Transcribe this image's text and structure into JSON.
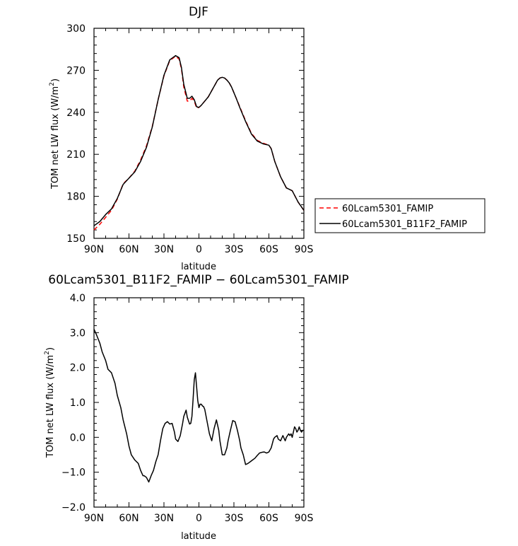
{
  "chart_data": [
    {
      "type": "line",
      "title": "DJF",
      "xlabel": "latitude",
      "ylabel": "TOM net LW flux (W/m",
      "ylabel_sup": "2",
      "ylabel_close": ")",
      "xlim": [
        90,
        -90
      ],
      "ylim": [
        150,
        300
      ],
      "xticks": [
        90,
        60,
        30,
        0,
        -30,
        -60,
        -90
      ],
      "xtick_labels": [
        "90N",
        "60N",
        "30N",
        "0",
        "30S",
        "60S",
        "90S"
      ],
      "yticks": [
        150,
        180,
        210,
        240,
        270,
        300
      ],
      "ytick_labels": [
        "150",
        "180",
        "210",
        "240",
        "270",
        "300"
      ],
      "legend_position": "right",
      "series": [
        {
          "name": "60Lcam5301_FAMIP",
          "color": "#ff0000",
          "style": "dashed",
          "x": [
            90,
            85,
            80,
            75,
            70,
            65,
            60,
            55,
            50,
            45,
            40,
            35,
            30,
            25,
            20,
            17,
            15,
            13,
            10,
            8,
            6,
            4,
            2,
            0,
            -2,
            -4,
            -6,
            -8,
            -10,
            -12,
            -14,
            -16,
            -18,
            -20,
            -22,
            -24,
            -26,
            -28,
            -30,
            -32,
            -35,
            -40,
            -45,
            -50,
            -55,
            -60,
            -62,
            -65,
            -70,
            -75,
            -80,
            -85,
            -90
          ],
          "y": [
            156,
            160,
            165,
            170,
            178,
            189,
            193,
            198,
            206,
            216,
            230,
            249,
            266,
            277,
            280,
            278,
            271,
            258,
            248,
            248,
            250,
            248,
            243,
            243.5,
            245,
            247,
            249,
            251,
            254,
            257,
            260,
            263,
            264.5,
            265,
            264.5,
            263,
            261,
            258,
            254,
            250,
            244,
            234,
            225,
            220,
            218,
            216.5,
            214,
            205,
            194,
            186,
            184,
            176,
            170
          ]
        },
        {
          "name": "60Lcam5301_B11F2_FAMIP",
          "color": "#000000",
          "style": "solid",
          "x": [
            90,
            85,
            80,
            75,
            70,
            65,
            60,
            55,
            50,
            45,
            40,
            35,
            30,
            25,
            20,
            17,
            15,
            13,
            10,
            8,
            6,
            4,
            2,
            0,
            -2,
            -4,
            -6,
            -8,
            -10,
            -12,
            -14,
            -16,
            -18,
            -20,
            -22,
            -24,
            -26,
            -28,
            -30,
            -32,
            -35,
            -40,
            -45,
            -50,
            -55,
            -60,
            -62,
            -65,
            -70,
            -75,
            -80,
            -85,
            -90
          ],
          "y": [
            159,
            162,
            167,
            171,
            178.5,
            188.5,
            193,
            197.5,
            205,
            215,
            229.5,
            249,
            266.5,
            277.5,
            280.5,
            279,
            272,
            260,
            250,
            250,
            251.5,
            249,
            244,
            243.5,
            245,
            247,
            249,
            251,
            254,
            257,
            260,
            263,
            264.5,
            265,
            264.5,
            263,
            261,
            258,
            254,
            250,
            243.5,
            233.5,
            224.5,
            219.5,
            217.5,
            216.5,
            214,
            205,
            194,
            186,
            184,
            176,
            170
          ]
        }
      ]
    },
    {
      "type": "line",
      "title": "60Lcam5301_B11F2_FAMIP − 60Lcam5301_FAMIP",
      "xlabel": "latitude",
      "ylabel": "TOM net LW flux (W/m",
      "ylabel_sup": "2",
      "ylabel_close": ")",
      "xlim": [
        90,
        -90
      ],
      "ylim": [
        -2.0,
        4.0
      ],
      "xticks": [
        90,
        60,
        30,
        0,
        -30,
        -60,
        -90
      ],
      "xtick_labels": [
        "90N",
        "60N",
        "30N",
        "0",
        "30S",
        "60S",
        "90S"
      ],
      "yticks": [
        -2.0,
        -1.0,
        0.0,
        1.0,
        2.0,
        3.0,
        4.0
      ],
      "ytick_labels": [
        "−2.0",
        "−1.0",
        "0.0",
        "1.0",
        "2.0",
        "3.0",
        "4.0"
      ],
      "series": [
        {
          "name": "",
          "color": "#000000",
          "style": "solid",
          "x": [
            90,
            88,
            85,
            83,
            80,
            78,
            75,
            72,
            70,
            67,
            65,
            62,
            60,
            58,
            55,
            52,
            50,
            48,
            47,
            45,
            43,
            41,
            39,
            37,
            35,
            33,
            31,
            29,
            27,
            25,
            23,
            21,
            20,
            18,
            16,
            14,
            13,
            11,
            10,
            8,
            7,
            6,
            5,
            4,
            3,
            2,
            1,
            0,
            -1,
            -2,
            -3,
            -4,
            -5,
            -7,
            -9,
            -11,
            -13,
            -15,
            -17,
            -18,
            -20,
            -22,
            -24,
            -25,
            -27,
            -29,
            -31,
            -33,
            -35,
            -36,
            -38,
            -40,
            -42,
            -44,
            -46,
            -48,
            -50,
            -52,
            -54,
            -56,
            -58,
            -60,
            -62,
            -64,
            -65,
            -67,
            -68,
            -70,
            -72,
            -74,
            -75,
            -76,
            -77,
            -78,
            -79,
            -80,
            -81,
            -82,
            -83,
            -84,
            -85,
            -86,
            -87,
            -88,
            -89,
            -90
          ],
          "y": [
            3.1,
            2.95,
            2.7,
            2.45,
            2.2,
            1.95,
            1.85,
            1.55,
            1.2,
            0.85,
            0.5,
            0.1,
            -0.25,
            -0.5,
            -0.65,
            -0.75,
            -0.95,
            -1.1,
            -1.1,
            -1.15,
            -1.28,
            -1.1,
            -0.95,
            -0.7,
            -0.5,
            -0.1,
            0.25,
            0.4,
            0.45,
            0.38,
            0.4,
            0.15,
            -0.05,
            -0.12,
            0.05,
            0.4,
            0.6,
            0.78,
            0.58,
            0.38,
            0.4,
            0.6,
            1.1,
            1.65,
            1.85,
            1.45,
            1.05,
            0.85,
            0.95,
            0.95,
            0.9,
            0.88,
            0.8,
            0.45,
            0.1,
            -0.1,
            0.25,
            0.5,
            0.2,
            -0.1,
            -0.5,
            -0.5,
            -0.3,
            -0.1,
            0.2,
            0.48,
            0.45,
            0.2,
            -0.1,
            -0.3,
            -0.5,
            -0.78,
            -0.75,
            -0.7,
            -0.65,
            -0.6,
            -0.52,
            -0.45,
            -0.43,
            -0.42,
            -0.45,
            -0.42,
            -0.3,
            -0.05,
            0.0,
            0.05,
            -0.05,
            -0.1,
            0.05,
            -0.1,
            0.0,
            0.05,
            0.1,
            0.05,
            0.1,
            0.0,
            0.15,
            0.3,
            0.25,
            0.15,
            0.2,
            0.3,
            0.2,
            0.15,
            0.2,
            0.2
          ]
        }
      ]
    }
  ]
}
